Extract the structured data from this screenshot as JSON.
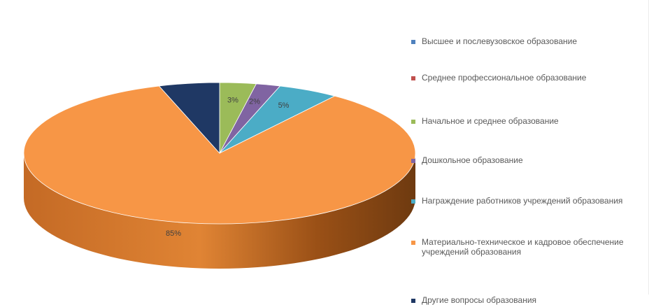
{
  "chart_data": {
    "type": "pie",
    "title": "",
    "legend_position": "right",
    "slices": [
      {
        "name": "Высшее и послевузовское образование",
        "value": 0,
        "label": "",
        "color": "#4f81bd"
      },
      {
        "name": "Среднее профессиональное образование",
        "value": 0,
        "label": "",
        "color": "#c0504d"
      },
      {
        "name": "Начальное и среднее образование",
        "value": 3,
        "label": "3%",
        "color": "#9bbb59"
      },
      {
        "name": "Дошкольное образование",
        "value": 2,
        "label": "2%",
        "color": "#8064a2"
      },
      {
        "name": "Награждение работников учреждений образования",
        "value": 5,
        "label": "5%",
        "color": "#4bacc6"
      },
      {
        "name": "Материально-техническое и кадровое обеспечение учреждений образования",
        "value": 85,
        "label": "85%",
        "color": "#f79646"
      },
      {
        "name": "Другие вопросы образования",
        "value": 5,
        "label": "",
        "color": "#1f3864"
      }
    ]
  }
}
